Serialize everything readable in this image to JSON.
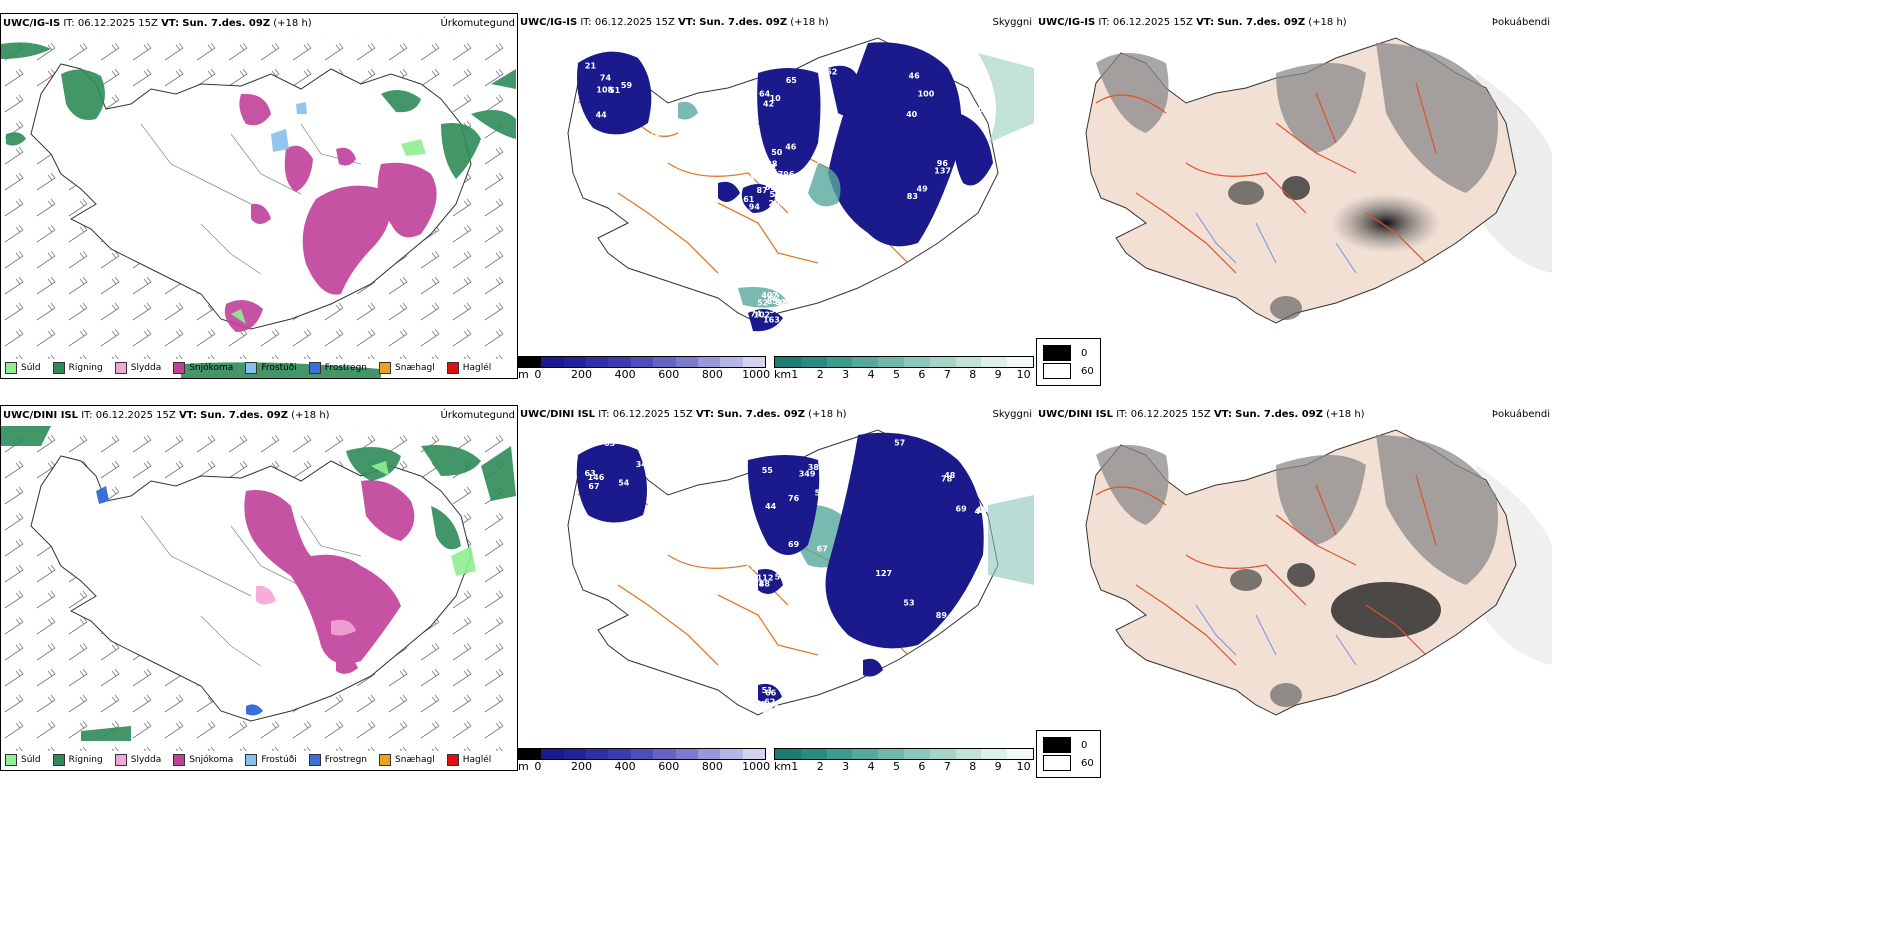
{
  "rows": [
    {
      "model": "UWC/IG-IS",
      "it_label": "IT:",
      "it_value": "06.12.2025 15Z",
      "vt_label": "VT:",
      "vt_value": "Sun. 7.des. 09Z",
      "lead": "(+18 h)"
    },
    {
      "model": "UWC/DINI ISL",
      "it_label": "IT:",
      "it_value": "06.12.2025 15Z",
      "vt_label": "VT:",
      "vt_value": "Sun. 7.des. 09Z",
      "lead": "(+18 h)"
    }
  ],
  "panels": {
    "precip": "Úrkomutegund",
    "visibility": "Skyggni",
    "fog": "Þokuábendi"
  },
  "precip_legend": [
    {
      "label": "Súld",
      "color": "#90ee90"
    },
    {
      "label": "Rigning",
      "color": "#2e8b57"
    },
    {
      "label": "Slydda",
      "color": "#f4a6d7"
    },
    {
      "label": "Snjókoma",
      "color": "#c0409a"
    },
    {
      "label": "Frostúði",
      "color": "#87bfef"
    },
    {
      "label": "Frostregn",
      "color": "#3a6fd8"
    },
    {
      "label": "Snæhagl",
      "color": "#f0a020"
    },
    {
      "label": "Haglél",
      "color": "#e01010"
    }
  ],
  "vis_m": {
    "unit": "m",
    "ticks": [
      "0",
      "200",
      "400",
      "600",
      "800",
      "1000"
    ],
    "colors": [
      "#000000",
      "#1a1a8c",
      "#232399",
      "#2e2ea6",
      "#3c3cb0",
      "#4e4eba",
      "#6464c4",
      "#7c7cce",
      "#9898da",
      "#b6b6e6",
      "#d4d4f2"
    ]
  },
  "vis_km": {
    "unit": "km",
    "ticks": [
      "1",
      "2",
      "3",
      "4",
      "5",
      "6",
      "7",
      "8",
      "9",
      "10"
    ],
    "colors": [
      "#1f7a72",
      "#2d8a80",
      "#3f9a8e",
      "#56a99c",
      "#6fb8ab",
      "#8ac6ba",
      "#a6d4c9",
      "#c2e2d9",
      "#dcefe9",
      "#f2f9f7"
    ]
  },
  "fog_legend": [
    "0",
    "60"
  ],
  "top_vis_labels": [
    "78",
    "42",
    "63",
    "87",
    "85",
    "66",
    "65",
    "100",
    "61",
    "52",
    "41",
    "50",
    "46",
    "50",
    "57",
    "21",
    "63",
    "67",
    "53",
    "52",
    "51",
    "46",
    "40",
    "44",
    "62",
    "44",
    "51",
    "39",
    "77",
    "163",
    "74",
    "10",
    "137",
    "94",
    "99",
    "59",
    "128",
    "83",
    "52",
    "74",
    "60",
    "52",
    "96",
    "203",
    "102",
    "11",
    "141",
    "49",
    "796",
    "407",
    "108",
    "64"
  ],
  "bottom_vis_labels": [
    "63",
    "38",
    "44",
    "48",
    "62",
    "67",
    "55",
    "78",
    "62",
    "66",
    "54",
    "63",
    "57",
    "78",
    "136",
    "92",
    "69",
    "51",
    "50",
    "56",
    "146",
    "44",
    "45",
    "98",
    "35",
    "63",
    "76",
    "69",
    "110",
    "167",
    "111",
    "349",
    "127",
    "112",
    "93",
    "46",
    "54",
    "53",
    "82",
    "51",
    "54",
    "58",
    "89",
    "179",
    "45",
    "34",
    "67",
    "48"
  ]
}
